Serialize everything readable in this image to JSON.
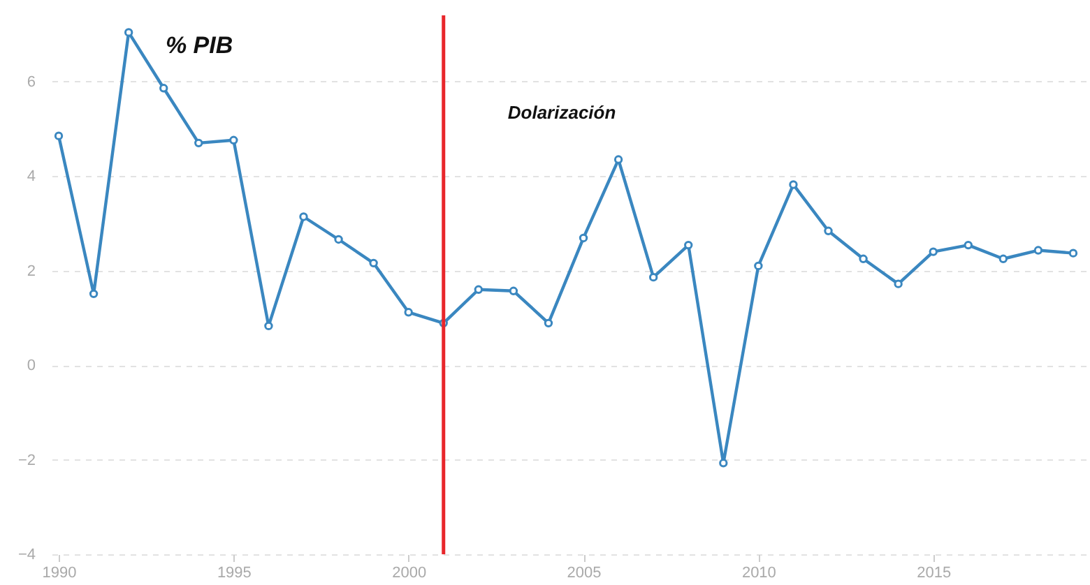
{
  "chart_data": {
    "type": "line",
    "title": "% PIB",
    "x": [
      1990,
      1991,
      1992,
      1993,
      1994,
      1995,
      1996,
      1997,
      1998,
      1999,
      2000,
      2001,
      2002,
      2003,
      2004,
      2005,
      2006,
      2007,
      2008,
      2009,
      2010,
      2011,
      2012,
      2013,
      2014,
      2015,
      2016,
      2017,
      2018,
      2019
    ],
    "series": [
      {
        "color": "#3a87c0",
        "values": [
          4.85,
          1.51,
          7.04,
          5.86,
          4.7,
          4.76,
          0.83,
          3.14,
          2.66,
          2.16,
          1.12,
          0.89,
          1.6,
          1.57,
          0.89,
          2.69,
          4.35,
          1.86,
          2.54,
          -2.07,
          2.1,
          3.82,
          2.84,
          2.25,
          1.72,
          2.4,
          2.54,
          2.25,
          2.43,
          2.37
        ]
      }
    ],
    "xlim": [
      1989.8,
      2019.4
    ],
    "xticks": [
      1990,
      1995,
      2000,
      2005,
      2010,
      2015
    ],
    "ylim": [
      -4,
      7.4
    ],
    "yticks": [
      -4,
      -2,
      0,
      2,
      4,
      6
    ],
    "ref_lines": [
      {
        "axis": "x",
        "value": 2001,
        "color": "#e8262b"
      }
    ],
    "annotations": [
      "Dolarización"
    ],
    "grid": "y",
    "marker": "circle",
    "line_style": "solid"
  }
}
